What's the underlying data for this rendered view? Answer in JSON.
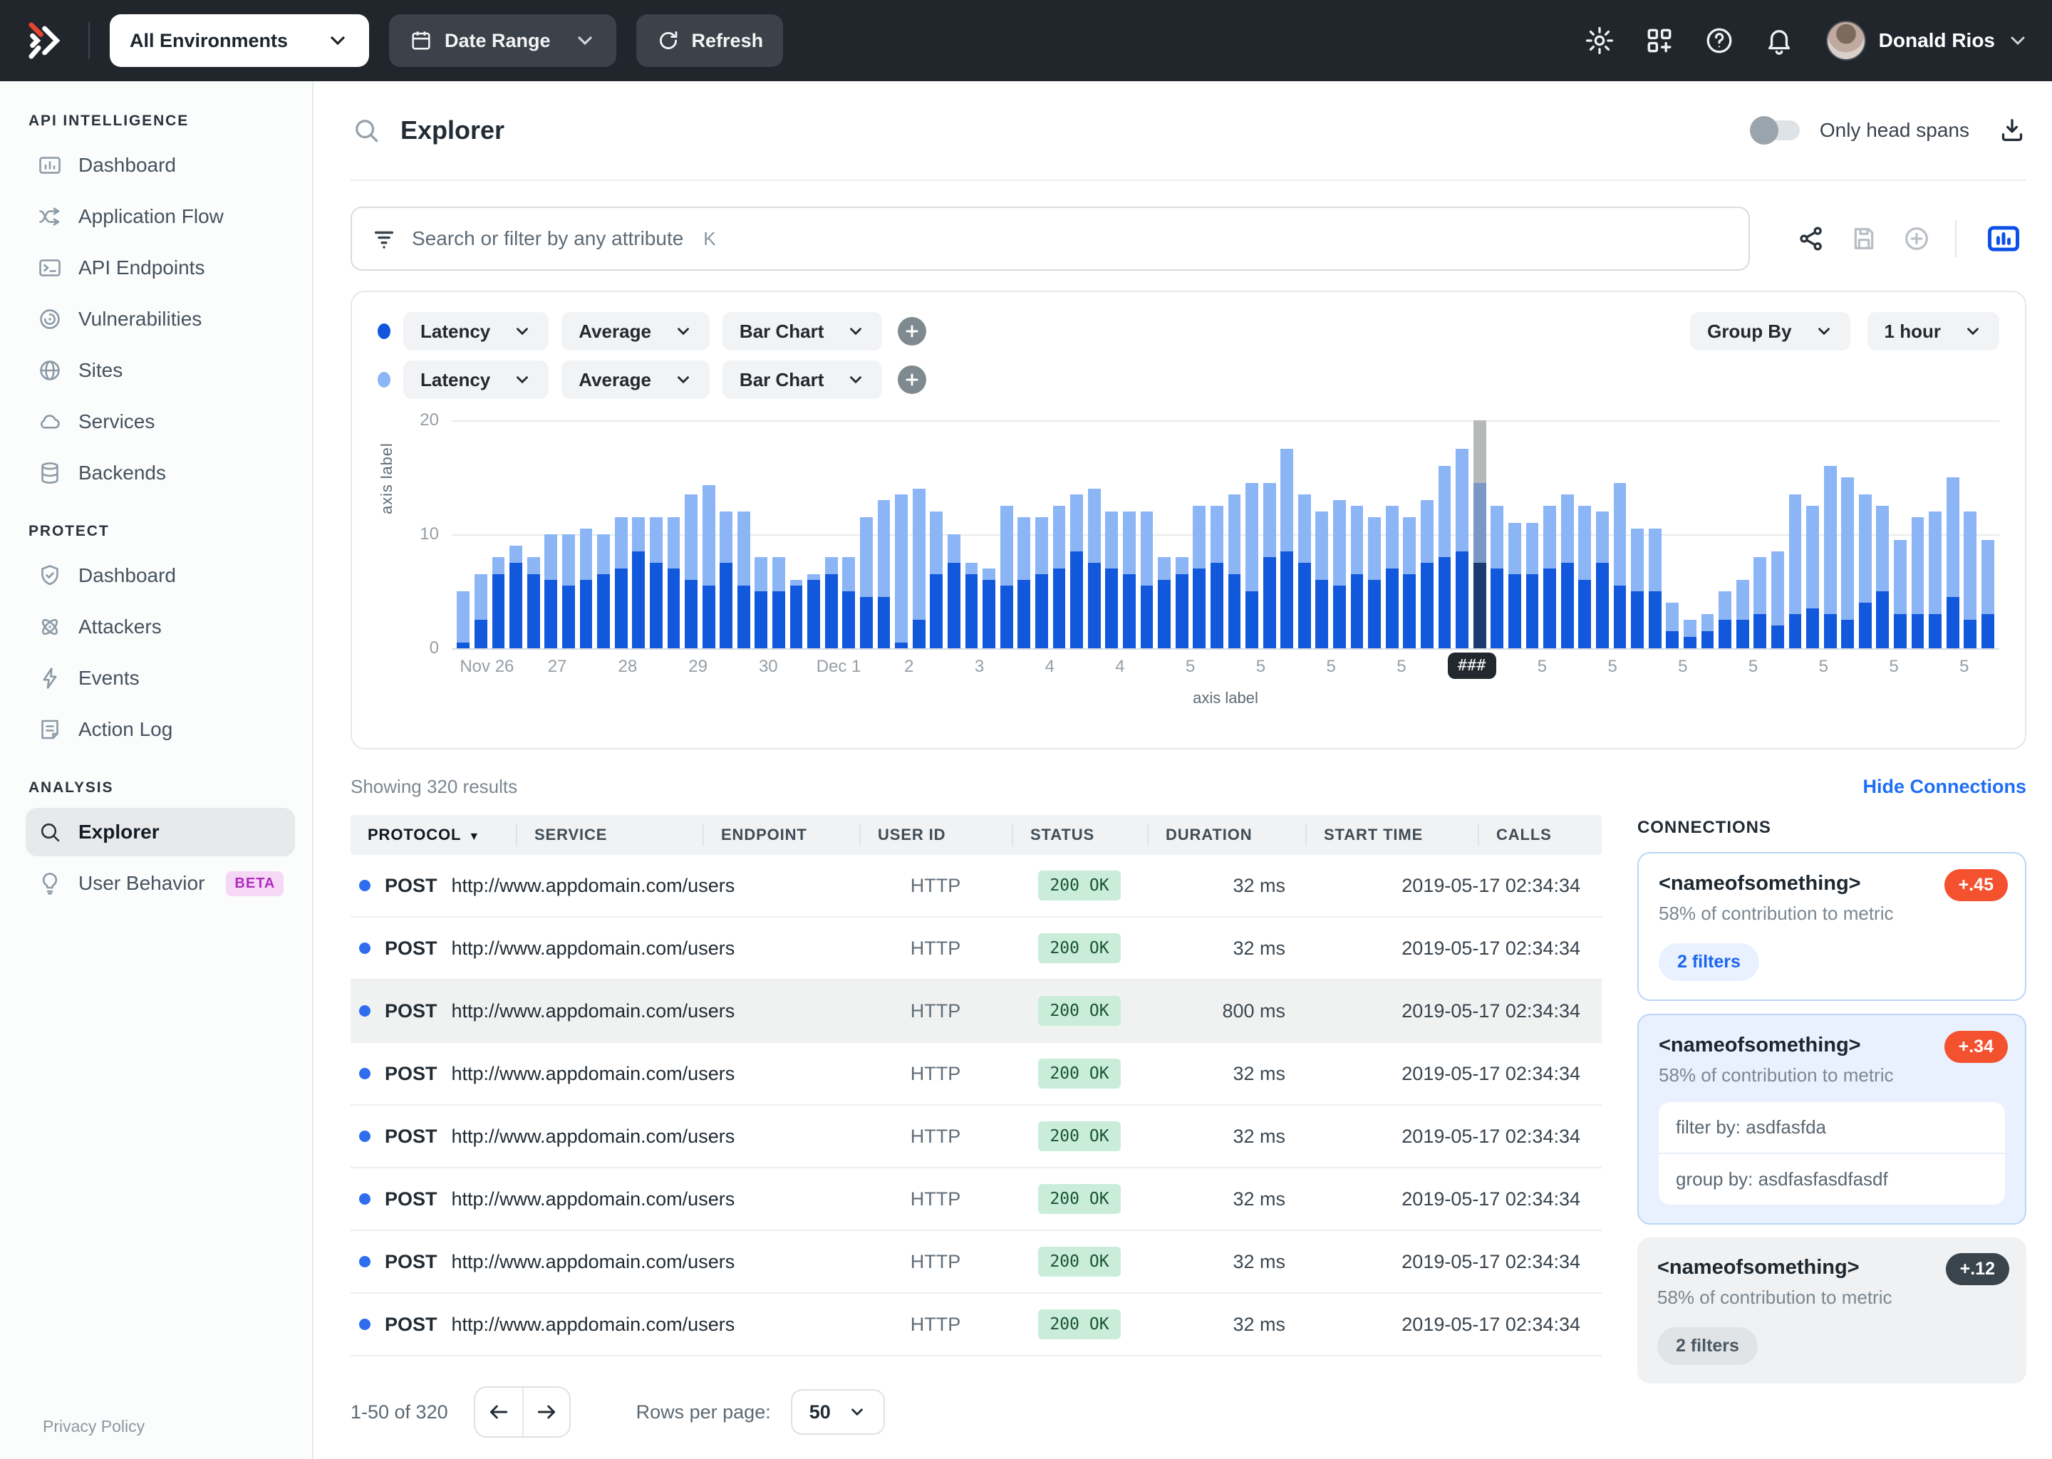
{
  "topbar": {
    "environment": "All Environments",
    "date_range": "Date Range",
    "refresh": "Refresh",
    "user": "Donald Rios"
  },
  "sidebar": {
    "sections": [
      {
        "title": "API INTELLIGENCE",
        "items": [
          {
            "icon": "dashboard-icon",
            "label": "Dashboard"
          },
          {
            "icon": "application-flow-icon",
            "label": "Application Flow"
          },
          {
            "icon": "api-endpoints-icon",
            "label": "API Endpoints"
          },
          {
            "icon": "vulnerabilities-icon",
            "label": "Vulnerabilities"
          },
          {
            "icon": "globe-icon",
            "label": "Sites"
          },
          {
            "icon": "cloud-icon",
            "label": "Services"
          },
          {
            "icon": "database-icon",
            "label": "Backends"
          }
        ]
      },
      {
        "title": "PROTECT",
        "items": [
          {
            "icon": "shield-icon",
            "label": "Dashboard"
          },
          {
            "icon": "attackers-icon",
            "label": "Attackers"
          },
          {
            "icon": "lightning-icon",
            "label": "Events"
          },
          {
            "icon": "action-log-icon",
            "label": "Action Log"
          }
        ]
      },
      {
        "title": "ANALYSIS",
        "items": [
          {
            "icon": "search-icon",
            "label": "Explorer",
            "selected": true
          },
          {
            "icon": "lightbulb-icon",
            "label": "User Behavior",
            "badge": "BETA"
          }
        ]
      }
    ],
    "privacy_policy": "Privacy Policy"
  },
  "header": {
    "title": "Explorer",
    "only_head_spans": "Only head spans"
  },
  "search": {
    "placeholder": "Search or filter by any attribute",
    "shortcut": "K"
  },
  "chart_builder": {
    "rows": [
      {
        "dot_color": "#1355dd",
        "metric": "Latency",
        "aggregation": "Average",
        "chart_type": "Bar Chart"
      },
      {
        "dot_color": "#8cb5f6",
        "metric": "Latency",
        "aggregation": "Average",
        "chart_type": "Bar Chart"
      }
    ],
    "group_by": "Group By",
    "interval": "1 hour"
  },
  "chart_data": {
    "type": "bar",
    "stacked": true,
    "title": "",
    "xlabel": "axis label",
    "ylabel": "axis label",
    "yticks": [
      0,
      10,
      20
    ],
    "ylim": [
      0,
      20
    ],
    "grid": "horizontal",
    "x_labels": [
      "Nov 26",
      "27",
      "28",
      "29",
      "30",
      "Dec 1",
      "2",
      "3",
      "4",
      "4",
      "5",
      "5",
      "5",
      "5",
      "###",
      "5",
      "5",
      "5",
      "5",
      "5",
      "5",
      "5"
    ],
    "bars_per_label": 4,
    "highlight_index": 58,
    "highlight_label": "###",
    "highlight": {
      "dark_color": "#1a3a70",
      "light_color": "#7b97c6",
      "cap_color": "#b6b8ba"
    },
    "series": [
      {
        "name": "Latency Average (series 1)",
        "color": "#1158dd",
        "values": [
          0.5,
          2.5,
          6.5,
          7.5,
          6.5,
          6,
          5.5,
          6,
          6.5,
          7,
          8.5,
          7.5,
          7,
          6,
          5.5,
          7.5,
          5.5,
          5,
          5,
          5.5,
          6,
          6.5,
          5,
          4.5,
          4.5,
          0.5,
          2.5,
          6.5,
          7.5,
          6.5,
          6,
          5.5,
          6,
          6.5,
          7,
          8.5,
          7.5,
          7,
          6.5,
          5.5,
          6,
          6.5,
          7,
          7.5,
          6.5,
          5,
          8,
          8.5,
          7.5,
          6,
          5.5,
          6.5,
          6,
          7,
          6.5,
          7.5,
          8,
          8.5,
          7.5,
          7,
          6.5,
          6.5,
          7,
          7.5,
          6,
          7.5,
          5.5,
          5,
          5,
          1.5,
          1,
          1.5,
          2.5,
          2.5,
          3,
          2,
          3,
          3.5,
          3,
          2.5,
          4,
          5,
          3,
          3,
          3,
          4.5,
          2.5,
          3
        ]
      },
      {
        "name": "Latency Average (series 2)",
        "color": "#8cb5f6",
        "values": [
          4.5,
          4,
          1.5,
          1.5,
          1.5,
          4,
          4.5,
          4.5,
          3.5,
          4.5,
          3,
          4,
          4.5,
          7.5,
          8.8,
          4.5,
          6.5,
          3,
          3,
          0.5,
          0.5,
          1.5,
          3,
          7,
          8.5,
          13,
          11.5,
          5.5,
          2.5,
          1,
          1,
          7,
          5.5,
          5,
          5.5,
          5,
          6.5,
          5,
          5.5,
          6.5,
          2,
          1.5,
          5.5,
          5,
          7,
          9.5,
          6.5,
          9,
          6,
          6,
          7.5,
          6,
          5.5,
          5.5,
          5,
          5.5,
          8,
          9,
          7,
          5.5,
          4.5,
          4.5,
          5.5,
          6,
          6.5,
          4.5,
          9,
          5.5,
          5.5,
          2.5,
          1.5,
          1.5,
          2.5,
          3.5,
          5,
          6.5,
          10.5,
          9,
          13,
          12.5,
          9.5,
          7.5,
          6.5,
          8.5,
          9,
          10.5,
          9.5,
          6.5
        ]
      }
    ]
  },
  "results": {
    "showing": "Showing 320 results",
    "hide_connections": "Hide Connections"
  },
  "table": {
    "headers": [
      "PROTOCOL",
      "SERVICE",
      "ENDPOINT",
      "USER ID",
      "STATUS",
      "DURATION",
      "START TIME",
      "CALLS"
    ],
    "sorted_column": "PROTOCOL",
    "rows": [
      {
        "method": "POST",
        "url": "http://www.appdomain.com/users",
        "protocol": "HTTP",
        "status": "200 OK",
        "duration": "32 ms",
        "start_time": "2019-05-17 02:34:34"
      },
      {
        "method": "POST",
        "url": "http://www.appdomain.com/users",
        "protocol": "HTTP",
        "status": "200 OK",
        "duration": "32 ms",
        "start_time": "2019-05-17 02:34:34"
      },
      {
        "method": "POST",
        "url": "http://www.appdomain.com/users",
        "protocol": "HTTP",
        "status": "200 OK",
        "duration": "800 ms",
        "start_time": "2019-05-17 02:34:34",
        "selected": true
      },
      {
        "method": "POST",
        "url": "http://www.appdomain.com/users",
        "protocol": "HTTP",
        "status": "200 OK",
        "duration": "32 ms",
        "start_time": "2019-05-17 02:34:34"
      },
      {
        "method": "POST",
        "url": "http://www.appdomain.com/users",
        "protocol": "HTTP",
        "status": "200 OK",
        "duration": "32 ms",
        "start_time": "2019-05-17 02:34:34"
      },
      {
        "method": "POST",
        "url": "http://www.appdomain.com/users",
        "protocol": "HTTP",
        "status": "200 OK",
        "duration": "32 ms",
        "start_time": "2019-05-17 02:34:34"
      },
      {
        "method": "POST",
        "url": "http://www.appdomain.com/users",
        "protocol": "HTTP",
        "status": "200 OK",
        "duration": "32 ms",
        "start_time": "2019-05-17 02:34:34"
      },
      {
        "method": "POST",
        "url": "http://www.appdomain.com/users",
        "protocol": "HTTP",
        "status": "200 OK",
        "duration": "32 ms",
        "start_time": "2019-05-17 02:34:34"
      }
    ]
  },
  "connections": {
    "title": "CONNECTIONS",
    "cards": [
      {
        "name": "<nameofsomething>",
        "score": "+.45",
        "score_style": "red",
        "variant": "outlined",
        "contribution": "58% of contribution to metric",
        "chip": "2 filters",
        "chip_style": "blue"
      },
      {
        "name": "<nameofsomething>",
        "score": "+.34",
        "score_style": "red",
        "variant": "active",
        "contribution": "58% of contribution to metric",
        "filters": [
          "filter by: asdfasfda",
          "group by: asdfasfasdfasdf"
        ]
      },
      {
        "name": "<nameofsomething>",
        "score": "+.12",
        "score_style": "dark",
        "variant": "muted",
        "contribution": "58% of contribution to metric",
        "chip": "2 filters",
        "chip_style": "gray"
      }
    ]
  },
  "pagination": {
    "range": "1-50 of 320",
    "rows_per_page_label": "Rows per page:",
    "rows_per_page": "50"
  }
}
